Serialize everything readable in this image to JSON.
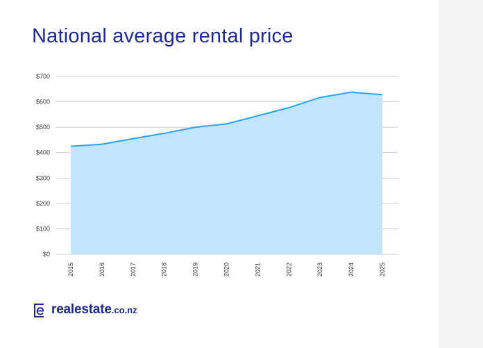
{
  "chart_data": {
    "type": "area",
    "title": "National average rental price",
    "xlabel": "",
    "ylabel": "",
    "x": [
      "2015",
      "2016",
      "2017",
      "2018",
      "2019",
      "2020",
      "2021",
      "2022",
      "2023",
      "2024",
      "2025"
    ],
    "values": [
      425,
      433,
      455,
      476,
      500,
      513,
      545,
      577,
      617,
      638,
      628
    ],
    "ylim": [
      0,
      700
    ],
    "yticks": [
      0,
      100,
      200,
      300,
      400,
      500,
      600,
      700
    ],
    "ytick_labels": [
      "$0",
      "$100",
      "$200",
      "$300",
      "$400",
      "$500",
      "$600",
      "$700"
    ],
    "grid": true,
    "legend": "none",
    "colors": {
      "line": "#29a3f5",
      "fill": "#c2e4fc",
      "grid": "#bfbfbf",
      "title": "#1f2a8c"
    }
  },
  "brand": {
    "name": "realestate",
    "suffix": ".co.nz",
    "icon": "realestate-logo-icon"
  }
}
